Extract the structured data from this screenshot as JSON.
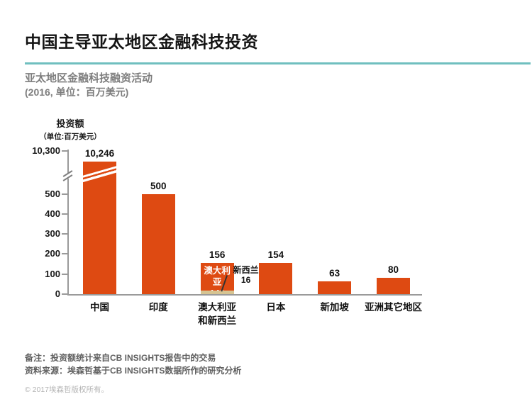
{
  "header": {
    "title": "中国主导亚太地区金融科技投资",
    "subtitle": "亚太地区金融科技融资活动",
    "subtitle_note": "(2016, 单位：百万美元)"
  },
  "chart_data": {
    "type": "bar",
    "title": "亚太地区金融科技融资活动",
    "subtitle": "(2016, 单位：百万美元)",
    "y_axis_title": "投资额",
    "y_axis_unit": "（单位:百万美元）",
    "y_ticks": [
      0,
      100,
      200,
      300,
      400,
      500
    ],
    "y_axis_break": {
      "enabled": true,
      "top_tick_label": "10,300"
    },
    "categories": [
      "中国",
      "印度",
      "澳大利亚\n和新西兰",
      "日本",
      "新加坡",
      "亚洲其它地区"
    ],
    "values": [
      10246,
      500,
      156,
      154,
      63,
      80
    ],
    "value_labels": [
      "10,246",
      "500",
      "156",
      "154",
      "63",
      "80"
    ],
    "stacked": {
      "category_index": 2,
      "segments": [
        {
          "name": "澳大利亚",
          "value": 140,
          "label": "澳大利亚\n140",
          "placement": "inside"
        },
        {
          "name": "新西兰",
          "value": 16,
          "label": "新西兰\n16",
          "placement": "callout-right"
        }
      ]
    },
    "legend": null,
    "grid": false,
    "colors": {
      "bar": "#de4a12",
      "segment_secondary": "#d6c492"
    }
  },
  "colors": {
    "divider": "#70bfbf",
    "axis": "#9a9a9a"
  },
  "footer": {
    "note": "备注：投资额统计来自CB INSIGHTS报告中的交易",
    "source": "资料来源：埃森哲基于CB INSIGHTS数据所作的研究分析",
    "copyright": "© 2017埃森哲版权所有。"
  }
}
